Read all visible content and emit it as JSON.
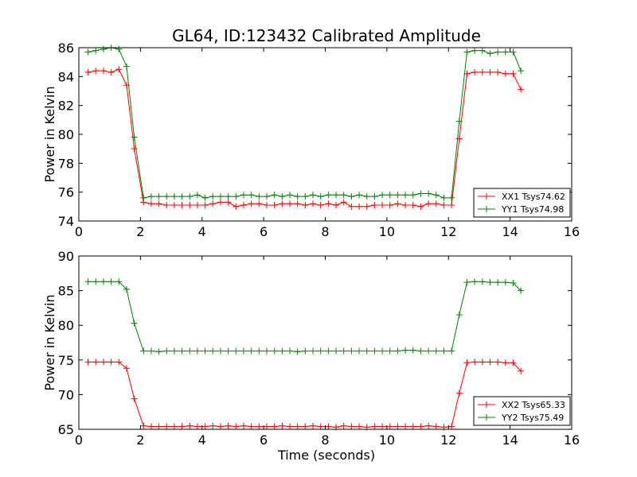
{
  "chart_data": [
    {
      "type": "line",
      "title": "GL64, ID:123432 Calibrated Amplitude",
      "xlabel": "",
      "ylabel": "Power in Kelvin",
      "xlim": [
        0,
        16
      ],
      "ylim": [
        74,
        86
      ],
      "xticks": [
        "0",
        "2",
        "4",
        "6",
        "8",
        "10",
        "12",
        "14",
        "16"
      ],
      "yticks": [
        "74",
        "76",
        "78",
        "80",
        "82",
        "84",
        "86"
      ],
      "grid": false,
      "legend_position": "lower-right",
      "x": [
        0.3,
        0.55,
        0.8,
        1.05,
        1.3,
        1.55,
        1.8,
        2.1,
        2.35,
        2.6,
        2.85,
        3.1,
        3.35,
        3.6,
        3.85,
        4.1,
        4.35,
        4.6,
        4.85,
        5.1,
        5.35,
        5.6,
        5.85,
        6.1,
        6.35,
        6.6,
        6.85,
        7.1,
        7.35,
        7.6,
        7.85,
        8.1,
        8.35,
        8.6,
        8.85,
        9.1,
        9.35,
        9.6,
        9.85,
        10.1,
        10.35,
        10.6,
        10.85,
        11.1,
        11.35,
        11.6,
        11.85,
        12.1,
        12.35,
        12.6,
        12.85,
        13.1,
        13.35,
        13.6,
        13.85,
        14.1,
        14.35
      ],
      "series": [
        {
          "name": "XX1 Tsys74.62",
          "color": "#ff0000",
          "values": [
            84.3,
            84.4,
            84.4,
            84.3,
            84.5,
            83.4,
            79.0,
            75.3,
            75.2,
            75.2,
            75.1,
            75.1,
            75.1,
            75.1,
            75.1,
            75.1,
            75.2,
            75.3,
            75.3,
            75.0,
            75.1,
            75.2,
            75.2,
            75.1,
            75.1,
            75.2,
            75.2,
            75.2,
            75.1,
            75.2,
            75.1,
            75.2,
            75.1,
            75.3,
            75.0,
            75.0,
            75.0,
            75.1,
            75.1,
            75.1,
            75.2,
            75.1,
            75.1,
            75.0,
            75.2,
            75.2,
            75.1,
            75.1,
            79.7,
            84.2,
            84.3,
            84.3,
            84.3,
            84.3,
            84.2,
            84.2,
            83.1
          ]
        },
        {
          "name": "YY1 Tsys74.98",
          "color": "#008000",
          "values": [
            85.7,
            85.8,
            85.9,
            86.0,
            85.9,
            84.7,
            79.8,
            75.6,
            75.7,
            75.7,
            75.7,
            75.7,
            75.7,
            75.7,
            75.8,
            75.6,
            75.7,
            75.7,
            75.7,
            75.7,
            75.8,
            75.8,
            75.7,
            75.7,
            75.8,
            75.7,
            75.8,
            75.7,
            75.7,
            75.8,
            75.7,
            75.8,
            75.8,
            75.8,
            75.7,
            75.8,
            75.7,
            75.7,
            75.8,
            75.8,
            75.8,
            75.8,
            75.8,
            75.9,
            75.9,
            75.8,
            75.6,
            75.6,
            80.9,
            85.7,
            85.8,
            85.8,
            85.6,
            85.7,
            85.7,
            85.7,
            84.4
          ]
        }
      ]
    },
    {
      "type": "line",
      "title": "",
      "xlabel": "Time (seconds)",
      "ylabel": "Power in Kelvin",
      "xlim": [
        0,
        16
      ],
      "ylim": [
        65,
        90
      ],
      "xticks": [
        "0",
        "2",
        "4",
        "6",
        "8",
        "10",
        "12",
        "14",
        "16"
      ],
      "yticks": [
        "65",
        "70",
        "75",
        "80",
        "85",
        "90"
      ],
      "grid": false,
      "legend_position": "lower-right",
      "x": [
        0.3,
        0.55,
        0.8,
        1.05,
        1.3,
        1.55,
        1.8,
        2.1,
        2.35,
        2.6,
        2.85,
        3.1,
        3.35,
        3.6,
        3.85,
        4.1,
        4.35,
        4.6,
        4.85,
        5.1,
        5.35,
        5.6,
        5.85,
        6.1,
        6.35,
        6.6,
        6.85,
        7.1,
        7.35,
        7.6,
        7.85,
        8.1,
        8.35,
        8.6,
        8.85,
        9.1,
        9.35,
        9.6,
        9.85,
        10.1,
        10.35,
        10.6,
        10.85,
        11.1,
        11.35,
        11.6,
        11.85,
        12.1,
        12.35,
        12.6,
        12.85,
        13.1,
        13.35,
        13.6,
        13.85,
        14.1,
        14.35
      ],
      "series": [
        {
          "name": "XX2 Tsys65.33",
          "color": "#ff0000",
          "values": [
            74.7,
            74.7,
            74.7,
            74.7,
            74.7,
            73.8,
            69.4,
            65.5,
            65.4,
            65.4,
            65.4,
            65.4,
            65.4,
            65.5,
            65.4,
            65.4,
            65.5,
            65.4,
            65.5,
            65.4,
            65.5,
            65.4,
            65.4,
            65.4,
            65.4,
            65.5,
            65.4,
            65.4,
            65.4,
            65.5,
            65.4,
            65.4,
            65.3,
            65.5,
            65.4,
            65.4,
            65.3,
            65.4,
            65.4,
            65.4,
            65.4,
            65.4,
            65.4,
            65.4,
            65.5,
            65.4,
            65.3,
            65.4,
            70.2,
            74.6,
            74.7,
            74.7,
            74.7,
            74.7,
            74.6,
            74.6,
            73.4
          ]
        },
        {
          "name": "YY2 Tsys75.49",
          "color": "#008000",
          "values": [
            86.3,
            86.3,
            86.3,
            86.3,
            86.3,
            85.2,
            80.3,
            76.3,
            76.3,
            76.2,
            76.3,
            76.3,
            76.3,
            76.3,
            76.3,
            76.3,
            76.3,
            76.3,
            76.3,
            76.3,
            76.3,
            76.3,
            76.3,
            76.3,
            76.3,
            76.3,
            76.3,
            76.2,
            76.3,
            76.3,
            76.3,
            76.3,
            76.3,
            76.3,
            76.3,
            76.3,
            76.3,
            76.3,
            76.3,
            76.3,
            76.3,
            76.4,
            76.4,
            76.3,
            76.3,
            76.3,
            76.3,
            76.3,
            81.5,
            86.2,
            86.3,
            86.3,
            86.2,
            86.2,
            86.2,
            86.1,
            85.0
          ]
        }
      ]
    }
  ]
}
